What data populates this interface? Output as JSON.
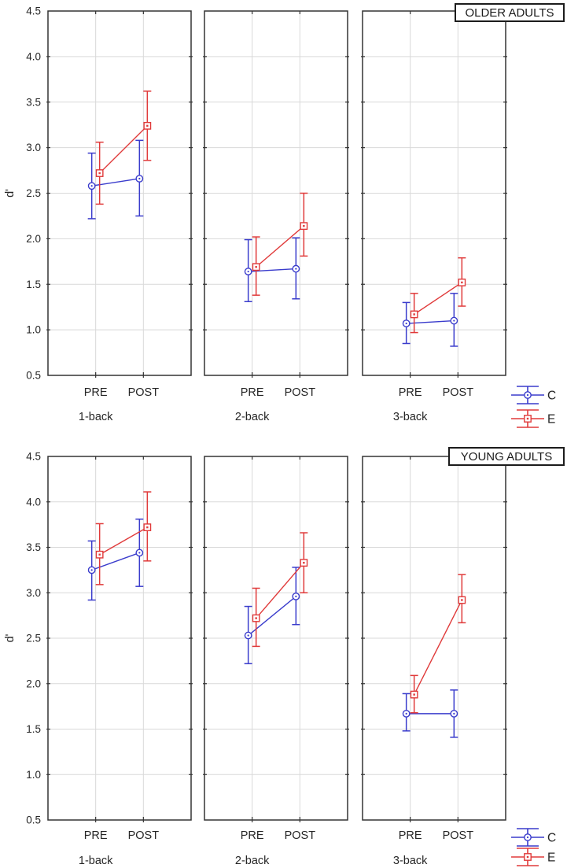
{
  "figure": {
    "background": "#ffffff",
    "series_colors": {
      "C": "#3a3ccc",
      "E": "#e03a3a"
    },
    "grid_color": "#d9d9d9",
    "axis_color": "#333333",
    "text_color": "#262626"
  },
  "chart_data": [
    {
      "type": "line",
      "title": "OLDER ADULTS",
      "ylabel": "d'",
      "ylim": [
        0.5,
        4.5
      ],
      "yticks": [
        0.5,
        1.0,
        1.5,
        2.0,
        2.5,
        3.0,
        3.5,
        4.0,
        4.5
      ],
      "ytick_labels": [
        "0.5",
        "1.0",
        "1.5",
        "2.0",
        "2.5",
        "3.0",
        "3.5",
        "4.0",
        "4.5"
      ],
      "x_categories": [
        "PRE",
        "POST"
      ],
      "grid": true,
      "legend_position": "right-bottom",
      "legend": [
        "C",
        "E"
      ],
      "subplots": [
        {
          "label": "1-back",
          "series": [
            {
              "name": "C",
              "marker": "circle",
              "values": [
                2.58,
                2.66
              ],
              "err_low": [
                2.22,
                2.25
              ],
              "err_high": [
                2.94,
                3.08
              ]
            },
            {
              "name": "E",
              "marker": "square",
              "values": [
                2.72,
                3.24
              ],
              "err_low": [
                2.38,
                2.86
              ],
              "err_high": [
                3.06,
                3.62
              ]
            }
          ]
        },
        {
          "label": "2-back",
          "series": [
            {
              "name": "C",
              "marker": "circle",
              "values": [
                1.64,
                1.67
              ],
              "err_low": [
                1.31,
                1.34
              ],
              "err_high": [
                1.99,
                2.01
              ]
            },
            {
              "name": "E",
              "marker": "square",
              "values": [
                1.69,
                2.14
              ],
              "err_low": [
                1.38,
                1.81
              ],
              "err_high": [
                2.02,
                2.5
              ]
            }
          ]
        },
        {
          "label": "3-back",
          "series": [
            {
              "name": "C",
              "marker": "circle",
              "values": [
                1.07,
                1.1
              ],
              "err_low": [
                0.85,
                0.82
              ],
              "err_high": [
                1.3,
                1.4
              ]
            },
            {
              "name": "E",
              "marker": "square",
              "values": [
                1.17,
                1.52
              ],
              "err_low": [
                0.97,
                1.26
              ],
              "err_high": [
                1.4,
                1.79
              ]
            }
          ]
        }
      ]
    },
    {
      "type": "line",
      "title": "YOUNG ADULTS",
      "ylabel": "d'",
      "ylim": [
        0.5,
        4.5
      ],
      "yticks": [
        0.5,
        1.0,
        1.5,
        2.0,
        2.5,
        3.0,
        3.5,
        4.0,
        4.5
      ],
      "ytick_labels": [
        "0.5",
        "1.0",
        "1.5",
        "2.0",
        "2.5",
        "3.0",
        "3.5",
        "4.0",
        "4.5"
      ],
      "x_categories": [
        "PRE",
        "POST"
      ],
      "grid": true,
      "legend_position": "right-bottom",
      "legend": [
        "C",
        "E"
      ],
      "subplots": [
        {
          "label": "1-back",
          "series": [
            {
              "name": "C",
              "marker": "circle",
              "values": [
                3.25,
                3.44
              ],
              "err_low": [
                2.92,
                3.07
              ],
              "err_high": [
                3.57,
                3.81
              ]
            },
            {
              "name": "E",
              "marker": "square",
              "values": [
                3.42,
                3.72
              ],
              "err_low": [
                3.09,
                3.35
              ],
              "err_high": [
                3.76,
                4.11
              ]
            }
          ]
        },
        {
          "label": "2-back",
          "series": [
            {
              "name": "C",
              "marker": "circle",
              "values": [
                2.53,
                2.96
              ],
              "err_low": [
                2.22,
                2.65
              ],
              "err_high": [
                2.85,
                3.28
              ]
            },
            {
              "name": "E",
              "marker": "square",
              "values": [
                2.72,
                3.33
              ],
              "err_low": [
                2.41,
                3.0
              ],
              "err_high": [
                3.05,
                3.66
              ]
            }
          ]
        },
        {
          "label": "3-back",
          "series": [
            {
              "name": "C",
              "marker": "circle",
              "values": [
                1.67,
                1.67
              ],
              "err_low": [
                1.48,
                1.41
              ],
              "err_high": [
                1.89,
                1.93
              ]
            },
            {
              "name": "E",
              "marker": "square",
              "values": [
                1.88,
                2.92
              ],
              "err_low": [
                1.68,
                2.67
              ],
              "err_high": [
                2.09,
                3.2
              ]
            }
          ]
        }
      ]
    }
  ]
}
